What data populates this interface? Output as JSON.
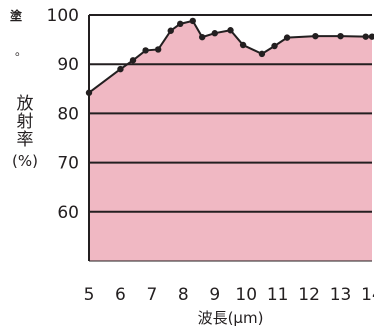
{
  "caption_fragments": {
    "top": "塗",
    "middle": "。"
  },
  "chart_data": {
    "type": "area",
    "title": "",
    "xlabel": "波長(μm)",
    "ylabel": [
      "放",
      "射",
      "率",
      "(%)"
    ],
    "xlim": [
      5,
      14
    ],
    "ylim": [
      50,
      100
    ],
    "x_ticks": [
      5,
      6,
      7,
      8,
      9,
      10,
      11,
      12,
      13,
      14
    ],
    "y_ticks": [
      60,
      70,
      80,
      90,
      100
    ],
    "grid": "horizontal",
    "legend": "none",
    "series": [
      {
        "x": [
          5.0,
          6.0,
          6.4,
          6.8,
          7.2,
          7.6,
          7.9,
          8.3,
          8.6,
          9.0,
          9.5,
          9.9,
          10.5,
          10.9,
          11.3,
          12.2,
          13.0,
          13.8,
          14.0
        ],
        "y": [
          84.2,
          89.0,
          90.8,
          92.8,
          93.0,
          96.8,
          98.2,
          98.8,
          95.5,
          96.3,
          96.9,
          93.9,
          92.1,
          93.7,
          95.4,
          95.7,
          95.7,
          95.6,
          95.6
        ]
      }
    ],
    "colors": {
      "fill": "#f0b8c3",
      "line": "#231f20",
      "grid": "#231f20"
    }
  }
}
